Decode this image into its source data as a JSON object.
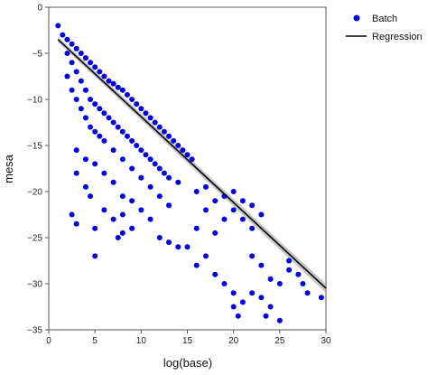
{
  "chart_data": {
    "type": "scatter",
    "xlabel": "log(base)",
    "ylabel": "mesa",
    "xlim": [
      0,
      30
    ],
    "ylim": [
      -35,
      0
    ],
    "xticks": [
      0,
      5,
      10,
      15,
      20,
      25,
      30
    ],
    "yticks": [
      0,
      -5,
      -10,
      -15,
      -20,
      -25,
      -30,
      -35
    ],
    "grid": false,
    "legend_placement": "outside-top-right",
    "series": [
      {
        "name": "Batch",
        "kind": "points",
        "color": "#0000ee",
        "points": [
          [
            1,
            -2
          ],
          [
            1.5,
            -3
          ],
          [
            2,
            -3.5
          ],
          [
            2.5,
            -4
          ],
          [
            3,
            -4.5
          ],
          [
            3.5,
            -5
          ],
          [
            4,
            -5.5
          ],
          [
            4.5,
            -6
          ],
          [
            5,
            -6.5
          ],
          [
            5.5,
            -7
          ],
          [
            6,
            -7.5
          ],
          [
            6.5,
            -8
          ],
          [
            7,
            -8.3
          ],
          [
            7.5,
            -8.7
          ],
          [
            8,
            -9
          ],
          [
            8.5,
            -9.5
          ],
          [
            9,
            -10
          ],
          [
            9.5,
            -10.5
          ],
          [
            10,
            -11
          ],
          [
            10.5,
            -11.5
          ],
          [
            11,
            -12
          ],
          [
            11.5,
            -12.5
          ],
          [
            12,
            -13
          ],
          [
            12.5,
            -13.5
          ],
          [
            13,
            -14
          ],
          [
            13.5,
            -14.5
          ],
          [
            14,
            -15
          ],
          [
            14.5,
            -15.5
          ],
          [
            15,
            -16
          ],
          [
            15.5,
            -16.5
          ],
          [
            2,
            -5
          ],
          [
            2.5,
            -6
          ],
          [
            3,
            -7
          ],
          [
            3.5,
            -8
          ],
          [
            4,
            -9
          ],
          [
            4.5,
            -10
          ],
          [
            5,
            -10.5
          ],
          [
            5.5,
            -11
          ],
          [
            6,
            -11.5
          ],
          [
            6.5,
            -12
          ],
          [
            7,
            -12.5
          ],
          [
            7.5,
            -13
          ],
          [
            8,
            -13.5
          ],
          [
            8.5,
            -14
          ],
          [
            9,
            -14.5
          ],
          [
            9.5,
            -15
          ],
          [
            10,
            -15.5
          ],
          [
            10.5,
            -16
          ],
          [
            11,
            -16.5
          ],
          [
            11.5,
            -17
          ],
          [
            12,
            -17.5
          ],
          [
            12.5,
            -18
          ],
          [
            13,
            -18.5
          ],
          [
            14,
            -19
          ],
          [
            2,
            -7.5
          ],
          [
            2.5,
            -9
          ],
          [
            3,
            -10
          ],
          [
            3.5,
            -11
          ],
          [
            4,
            -12
          ],
          [
            4.5,
            -13
          ],
          [
            5,
            -13.5
          ],
          [
            5.5,
            -14
          ],
          [
            6,
            -14.5
          ],
          [
            7,
            -15.5
          ],
          [
            8,
            -16.5
          ],
          [
            9,
            -17.5
          ],
          [
            10,
            -18.5
          ],
          [
            11,
            -19.5
          ],
          [
            12,
            -20.5
          ],
          [
            13,
            -21.5
          ],
          [
            3,
            -15.5
          ],
          [
            4,
            -16.5
          ],
          [
            5,
            -17
          ],
          [
            6,
            -18
          ],
          [
            7,
            -19
          ],
          [
            8,
            -20.5
          ],
          [
            9,
            -21
          ],
          [
            10,
            -22
          ],
          [
            3,
            -18
          ],
          [
            4,
            -19.5
          ],
          [
            4.5,
            -20.5
          ],
          [
            6,
            -22
          ],
          [
            7,
            -23
          ],
          [
            8,
            -22.5
          ],
          [
            9,
            -24
          ],
          [
            12,
            -25
          ],
          [
            2.5,
            -22.5
          ],
          [
            3,
            -23.5
          ],
          [
            5,
            -24
          ],
          [
            7.5,
            -25
          ],
          [
            8,
            -24.5
          ],
          [
            11,
            -23
          ],
          [
            13,
            -25.5
          ],
          [
            14,
            -26
          ],
          [
            5,
            -27
          ],
          [
            16,
            -24
          ],
          [
            17,
            -22
          ],
          [
            18,
            -24.5
          ],
          [
            19,
            -23
          ],
          [
            20,
            -22
          ],
          [
            21,
            -23
          ],
          [
            22,
            -24
          ],
          [
            16,
            -20
          ],
          [
            17,
            -19.5
          ],
          [
            18,
            -21
          ],
          [
            19,
            -20.5
          ],
          [
            20,
            -20
          ],
          [
            21,
            -21
          ],
          [
            22,
            -21.5
          ],
          [
            23,
            -22.5
          ],
          [
            15,
            -26
          ],
          [
            16,
            -28
          ],
          [
            17,
            -27
          ],
          [
            18,
            -29
          ],
          [
            19,
            -30
          ],
          [
            20,
            -31
          ],
          [
            20.5,
            -33.5
          ],
          [
            21,
            -32
          ],
          [
            22,
            -27
          ],
          [
            23,
            -28
          ],
          [
            24,
            -29.5
          ],
          [
            25,
            -30
          ],
          [
            26,
            -28.5
          ],
          [
            27,
            -29
          ],
          [
            28,
            -31
          ],
          [
            29.5,
            -31.5
          ],
          [
            23,
            -31.5
          ],
          [
            23.5,
            -33.5
          ],
          [
            24,
            -32.5
          ],
          [
            25,
            -34
          ],
          [
            26,
            -27.5
          ],
          [
            27.5,
            -30
          ],
          [
            20,
            -32.5
          ],
          [
            22,
            -31
          ]
        ]
      },
      {
        "name": "Regression",
        "kind": "line",
        "color": "#000000",
        "x": [
          1,
          30
        ],
        "y": [
          -3.5,
          -30.5
        ]
      }
    ]
  }
}
